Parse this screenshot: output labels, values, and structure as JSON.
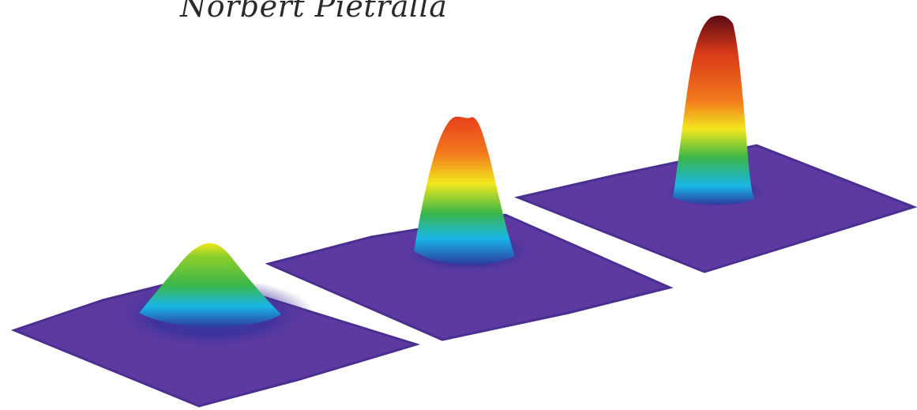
{
  "author_name": "Norbert Pietralla",
  "colors": {
    "floor": "#5b3aa0",
    "floor_dark": "#3a2f8a",
    "peak_low": "#2c3a9e",
    "peak_cyan": "#19b6e6",
    "peak_green": "#3cb648",
    "peak_yellow": "#f2e81d",
    "peak_orange": "#f26a1d",
    "peak_top": "#5a0a14"
  },
  "figure": {
    "description_icons": [
      "condensate-plot-left",
      "condensate-plot-middle",
      "condensate-plot-right"
    ]
  }
}
